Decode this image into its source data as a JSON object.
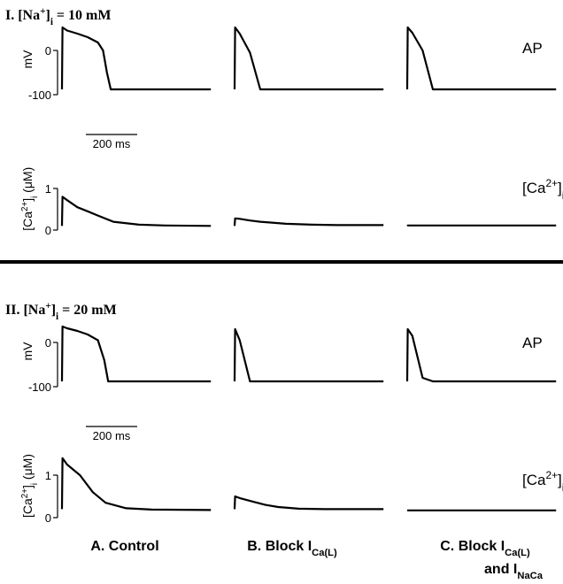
{
  "sections": [
    [
      {
        "t": "I.  [Na",
        "s": "n"
      },
      {
        "t": "+",
        "s": "sup"
      },
      {
        "t": "]",
        "s": "n"
      },
      {
        "t": "i",
        "s": "sub"
      },
      {
        "t": " = 10 mM",
        "s": "n"
      }
    ],
    [
      {
        "t": "II.  [Na",
        "s": "n"
      },
      {
        "t": "+",
        "s": "sup"
      },
      {
        "t": "]",
        "s": "n"
      },
      {
        "t": "i",
        "s": "sub"
      },
      {
        "t": " = 20 mM",
        "s": "n"
      }
    ]
  ],
  "columns": [
    [
      {
        "t": "A. Control",
        "s": "n"
      }
    ],
    [
      {
        "t": "B. Block I",
        "s": "n"
      },
      {
        "t": "Ca(L)",
        "s": "sub"
      }
    ],
    [
      {
        "t": "C. Block I",
        "s": "n"
      },
      {
        "t": "Ca(L)",
        "s": "sub"
      }
    ],
    [
      {
        "t": "and I",
        "s": "n"
      },
      {
        "t": "NaCa",
        "s": "sub"
      }
    ]
  ],
  "chart_data": [
    {
      "type": "line",
      "ylabel": [
        {
          "t": "mV",
          "s": "n"
        }
      ],
      "annotation": [
        {
          "t": "AP",
          "s": "n"
        }
      ],
      "ylim": [
        -100,
        60
      ],
      "yticks": [
        0,
        -100
      ],
      "scale_bar": {
        "length": 200,
        "label": "200 ms"
      },
      "x": [
        0,
        2,
        20,
        60,
        100,
        140,
        160,
        175,
        190,
        580
      ],
      "series": [
        {
          "color": "#000000",
          "values": [
            -88,
            52,
            45,
            38,
            30,
            18,
            0,
            -50,
            -88,
            -88
          ]
        },
        {
          "color": "#000000",
          "values": [
            -88,
            52,
            38,
            -5,
            -88,
            -88,
            -88,
            -88,
            -88,
            -88
          ]
        },
        {
          "color": "#000000",
          "values": [
            -88,
            52,
            40,
            0,
            -88,
            -88,
            -88,
            -88,
            -88,
            -88
          ]
        }
      ]
    },
    {
      "type": "line",
      "ylabel": [
        {
          "t": "[Ca",
          "s": "n"
        },
        {
          "t": "2+",
          "s": "sup"
        },
        {
          "t": "]",
          "s": "n"
        },
        {
          "t": "i",
          "s": "sub"
        },
        {
          "t": " (μM)",
          "s": "n"
        }
      ],
      "annotation": [
        {
          "t": "[Ca",
          "s": "n"
        },
        {
          "t": "2+",
          "s": "sup"
        },
        {
          "t": "]",
          "s": "n"
        },
        {
          "t": "i",
          "s": "sub"
        }
      ],
      "ylim": [
        0,
        1.5
      ],
      "yticks": [
        0,
        1
      ],
      "x": [
        0,
        2,
        20,
        60,
        100,
        140,
        200,
        300,
        400,
        580
      ],
      "series": [
        {
          "color": "#000000",
          "values": [
            0.1,
            0.8,
            0.72,
            0.55,
            0.45,
            0.35,
            0.2,
            0.13,
            0.11,
            0.1
          ]
        },
        {
          "color": "#000000",
          "values": [
            0.1,
            0.28,
            0.27,
            0.23,
            0.2,
            0.18,
            0.15,
            0.13,
            0.12,
            0.12
          ]
        },
        {
          "color": "#000000",
          "values": [
            0.1,
            0.11,
            0.11,
            0.11,
            0.11,
            0.11,
            0.11,
            0.11,
            0.11,
            0.11
          ]
        }
      ]
    },
    {
      "type": "line",
      "ylabel": [
        {
          "t": "mV",
          "s": "n"
        }
      ],
      "annotation": [
        {
          "t": "AP",
          "s": "n"
        }
      ],
      "ylim": [
        -100,
        60
      ],
      "yticks": [
        0,
        -100
      ],
      "scale_bar": {
        "length": 200,
        "label": "200 ms"
      },
      "x": [
        0,
        2,
        20,
        60,
        100,
        140,
        165,
        180,
        580
      ],
      "series": [
        {
          "color": "#000000",
          "values": [
            -88,
            36,
            32,
            26,
            18,
            5,
            -40,
            -88,
            -88
          ]
        },
        {
          "color": "#000000",
          "values": [
            -88,
            30,
            5,
            -88,
            -88,
            -88,
            -88,
            -88,
            -88
          ]
        },
        {
          "color": "#000000",
          "values": [
            -88,
            30,
            15,
            -80,
            -88,
            -88,
            -88,
            -88,
            -88
          ]
        }
      ]
    },
    {
      "type": "line",
      "ylabel": [
        {
          "t": "[Ca",
          "s": "n"
        },
        {
          "t": "2+",
          "s": "sup"
        },
        {
          "t": "]",
          "s": "n"
        },
        {
          "t": "i",
          "s": "sub"
        },
        {
          "t": " (μM)",
          "s": "n"
        }
      ],
      "annotation": [
        {
          "t": "[Ca",
          "s": "n"
        },
        {
          "t": "2+",
          "s": "sup"
        },
        {
          "t": "]",
          "s": "n"
        },
        {
          "t": "i",
          "s": "sub"
        }
      ],
      "ylim": [
        0,
        1.5
      ],
      "yticks": [
        0,
        1
      ],
      "x": [
        0,
        2,
        20,
        70,
        120,
        170,
        250,
        350,
        580
      ],
      "series": [
        {
          "color": "#000000",
          "values": [
            0.2,
            1.4,
            1.25,
            1.0,
            0.6,
            0.35,
            0.22,
            0.19,
            0.18
          ]
        },
        {
          "color": "#000000",
          "values": [
            0.2,
            0.5,
            0.46,
            0.38,
            0.3,
            0.25,
            0.21,
            0.2,
            0.2
          ]
        },
        {
          "color": "#000000",
          "values": [
            0.17,
            0.17,
            0.17,
            0.17,
            0.17,
            0.17,
            0.17,
            0.17,
            0.17
          ]
        }
      ]
    }
  ]
}
